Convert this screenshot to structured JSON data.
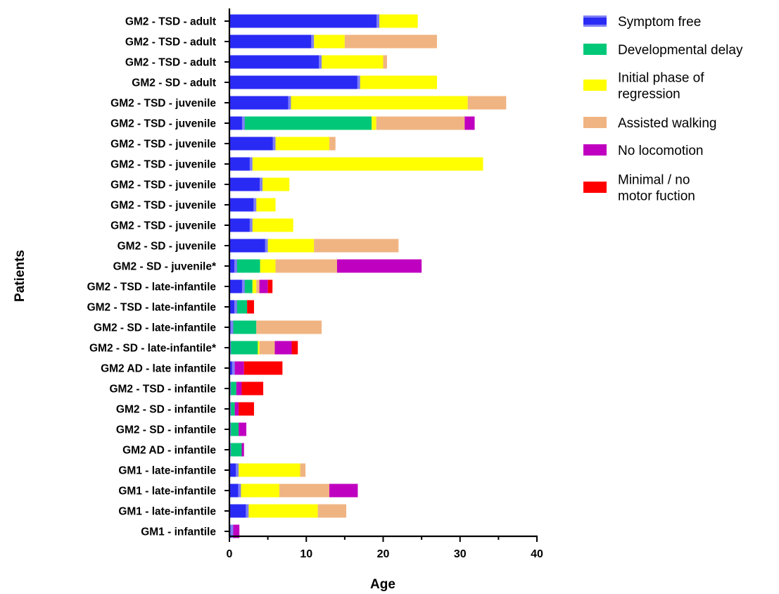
{
  "chart_data": {
    "type": "bar",
    "orientation": "horizontal",
    "stacked": true,
    "xlabel": "Age",
    "ylabel": "Patients",
    "xlim": [
      0,
      40
    ],
    "xticks": [
      0,
      10,
      20,
      30,
      40
    ],
    "grid": false,
    "legend_position": "top-right",
    "categories": [
      "GM2 - TSD - adult",
      "GM2 - TSD - adult",
      "GM2 - TSD - adult",
      "GM2 - SD - adult",
      "GM2 - TSD - juvenile",
      "GM2 - TSD - juvenile",
      "GM2 - TSD - juvenile",
      "GM2 - TSD - juvenile",
      "GM2 - TSD - juvenile",
      "GM2 - TSD - juvenile",
      "GM2 - TSD - juvenile",
      "GM2 - SD - juvenile",
      "GM2 - SD - juvenile*",
      "GM2 - TSD - late-infantile",
      "GM2 - TSD - late-infantile",
      "GM2 - SD - late-infantile",
      "GM2 - SD - late-infantile*",
      "GM2 AD - late infantile",
      "GM2 - TSD - infantile",
      "GM2 - SD - infantile",
      "GM2 - SD - infantile",
      "GM2 AD - infantile",
      "GM1 - late-infantile",
      "GM1 - late-infantile",
      "GM1 - late-infantile",
      "GM1 - infantile"
    ],
    "series": [
      {
        "name": "Symptom free",
        "color": "#2a2af5",
        "highlight": "#7f7ff5",
        "values": [
          19.5,
          11,
          12,
          17,
          8,
          2,
          6,
          3,
          4.3,
          3.5,
          3,
          5,
          1,
          2,
          1,
          0.5,
          0.2,
          0.7,
          0.2,
          0.2,
          0.2,
          0.2,
          1.2,
          1.5,
          2.5,
          0.5
        ]
      },
      {
        "name": "Developmental delay",
        "color": "#00c878",
        "values": [
          0,
          0,
          0,
          0,
          0,
          16.5,
          0,
          0,
          0,
          0,
          0,
          0,
          3,
          1,
          1.3,
          3,
          3.5,
          0,
          0.7,
          0.5,
          1,
          1.4,
          0,
          0,
          0,
          0
        ]
      },
      {
        "name": "Initial phase of regression",
        "color": "#ffff00",
        "values": [
          5,
          4,
          8,
          10,
          23,
          0.6,
          7,
          30,
          3.5,
          2.5,
          5.3,
          6,
          2,
          0.5,
          0,
          0,
          0.2,
          0,
          0,
          0,
          0,
          0,
          8,
          5,
          9,
          0
        ]
      },
      {
        "name": "Assisted walking",
        "color": "#f0b482",
        "values": [
          0,
          12,
          0.5,
          0,
          5,
          11.5,
          0.8,
          0,
          0,
          0,
          0,
          11,
          8,
          0.4,
          0,
          8.5,
          2,
          0,
          0,
          0,
          0,
          0,
          0.7,
          6.5,
          3.7,
          0
        ]
      },
      {
        "name": "No locomotion",
        "color": "#c000c0",
        "values": [
          0,
          0,
          0,
          0,
          0,
          1.3,
          0,
          0,
          0,
          0,
          0,
          0,
          11,
          1.1,
          0,
          0,
          2.2,
          1.2,
          0.7,
          0.5,
          1,
          0.3,
          0,
          3.7,
          0,
          0.8
        ]
      },
      {
        "name": "Minimal / no motor fuction",
        "color": "#ff0000",
        "values": [
          0,
          0,
          0,
          0,
          0,
          0,
          0,
          0,
          0,
          0,
          0,
          0,
          0,
          0.6,
          0.9,
          0,
          0.8,
          5,
          2.8,
          2,
          0,
          0,
          0,
          0,
          0,
          0
        ]
      }
    ]
  },
  "legend": {
    "items": [
      {
        "lines": [
          "Symptom free"
        ],
        "color": "#2a2af5",
        "highlight": "#7f7ff5"
      },
      {
        "lines": [
          "Developmental delay"
        ],
        "color": "#00c878"
      },
      {
        "lines": [
          "Initial phase of",
          "regression"
        ],
        "color": "#ffff00"
      },
      {
        "lines": [
          "Assisted walking"
        ],
        "color": "#f0b482"
      },
      {
        "lines": [
          "No locomotion"
        ],
        "color": "#c000c0"
      },
      {
        "lines": [
          "Minimal / no",
          "motor fuction"
        ],
        "color": "#ff0000"
      }
    ]
  }
}
